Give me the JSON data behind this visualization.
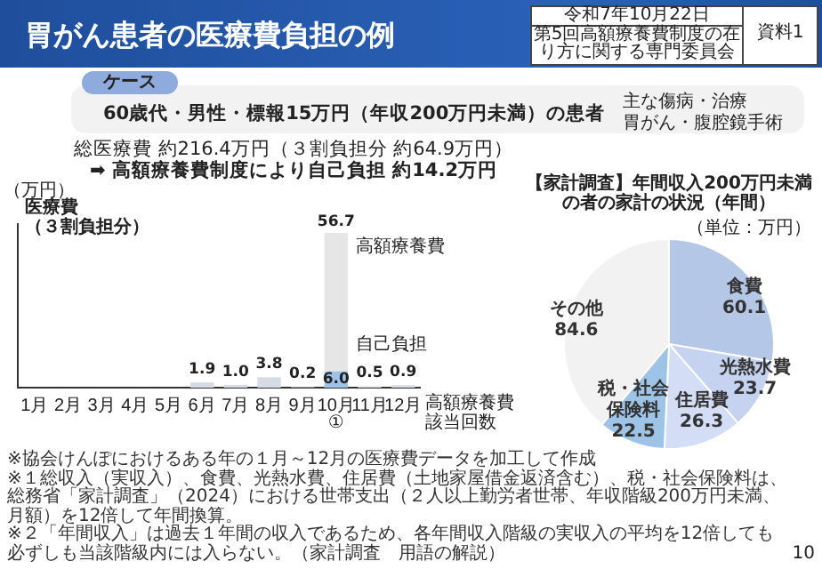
{
  "chart_data": [
    {
      "type": "bar",
      "title": "胃がん患者の医療費負担の例",
      "ylabel": "医療費（３割負担分）",
      "xlabel": "高額療養費該当回数",
      "categories": [
        "1月",
        "2月",
        "3月",
        "4月",
        "5月",
        "6月",
        "7月",
        "8月",
        "9月",
        "10月",
        "11月",
        "12月"
      ],
      "stacked": true,
      "tick_labels": "x",
      "grid": false,
      "legend": false,
      "series": [
        {
          "colors": [
            "#d6dce5",
            "#d6dce5",
            "#d6dce5",
            "#d6dce5",
            "#d6dce5",
            "#d6dce5",
            "#d6dce5",
            "#d6dce5",
            "#d6dce5",
            "#9dc3e6",
            "#d6dce5",
            "#d6dce5"
          ],
          "values": [
            null,
            null,
            null,
            null,
            null,
            1.9,
            1.0,
            3.8,
            0.2,
            6.0,
            0.5,
            0.9
          ],
          "value_labels": [
            null,
            null,
            null,
            null,
            null,
            "1.9",
            "1.0",
            "3.8",
            "0.2",
            "6.0",
            "0.5",
            "0.9"
          ]
        },
        {
          "color": "#e7e6e6",
          "values": [
            null,
            null,
            null,
            null,
            null,
            null,
            null,
            null,
            null,
            50.7,
            null,
            null
          ]
        }
      ],
      "totals": [
        null,
        null,
        null,
        null,
        null,
        null,
        null,
        null,
        null,
        "56.7",
        null,
        null
      ],
      "annotations": [
        "令和7年10月22日",
        "第5回高額療養費制度の在り方に関する専門委員会",
        "資料1",
        "ケース",
        "60歳代・男性・標報15万円（年収200万円未満）の患者",
        "主な傷病・治療",
        "胃がん・腹腔鏡手術",
        "総医療費 約216.4万円（３割負担分 約64.9万円）",
        "➡ 高額療養費制度により自己負担 約14.2万円",
        "（万円）",
        "①",
        "※協会けんぽにおけるある年の１月～12月の医療費データを加工して作成",
        "10",
        {
          "text": "高額療養費",
          "x": "10月",
          "y": 56.7
        },
        {
          "text": "自己負担",
          "x": "10月",
          "y": 6.0
        }
      ]
    },
    {
      "type": "pie",
      "title": "【家計調査】年間収入200万円未満の者の家計の状況（年間）",
      "categories": [
        "食費",
        "光熱水費",
        "住居費",
        "税・社会保険料",
        "その他"
      ],
      "values": [
        60.1,
        23.7,
        26.3,
        22.5,
        84.6
      ],
      "colors": [
        "#b4c7e7",
        "#c5d3f0",
        "#d3ddf5",
        "#9dc3e6",
        "#f2f2f2"
      ],
      "data_labels": true,
      "annotations": [
        "（単位：万円）",
        "※１総収入（実収入）、食費、光熱水費、住居費（土地家屋借金返済含む）、税・社会保険料は、総務省「家計調査」（2024）における世帯支出（２人以上勤労者世帯、年収階級200万円未満、月額）を12倍して年間換算。",
        "※２「年間収入」は過去１年間の収入であるため、各年間収入階級の実収入の平均を12倍しても必ずしも当該階級内には入らない。（家計調査　用語の解説）"
      ]
    }
  ]
}
